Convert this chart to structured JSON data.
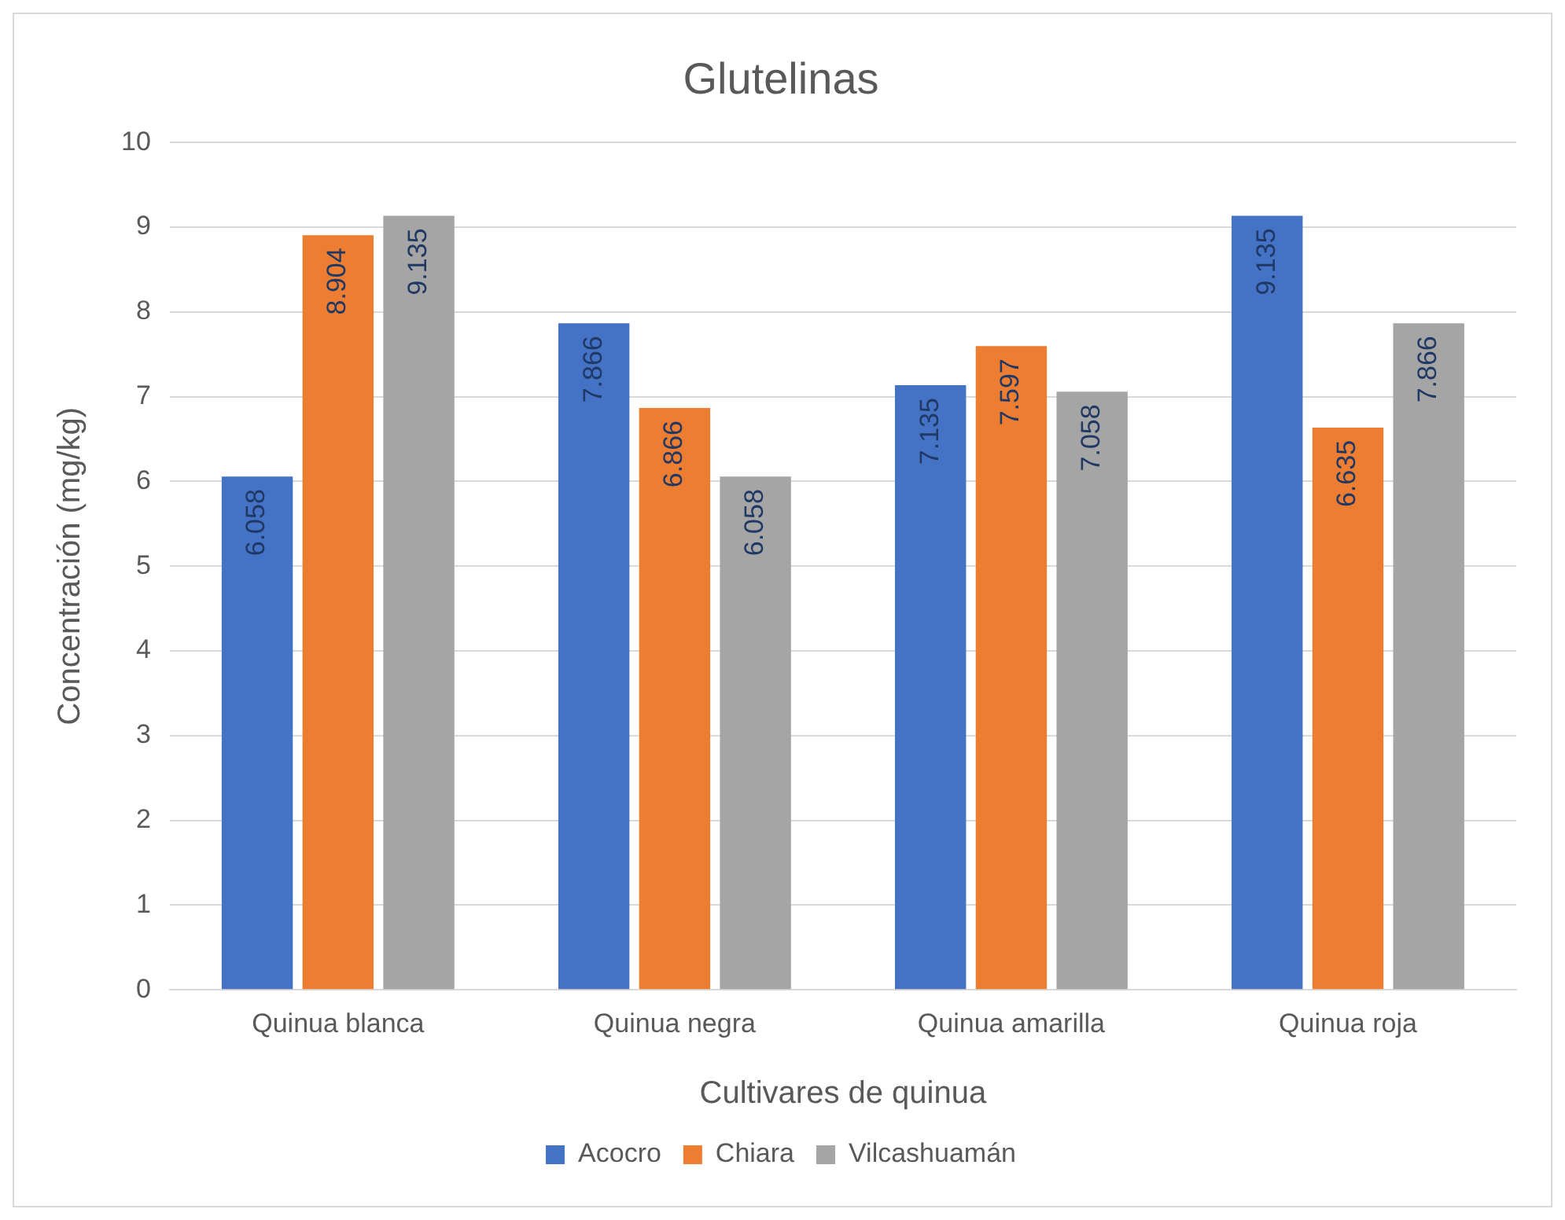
{
  "chart_data": {
    "type": "bar",
    "title": "Glutelinas",
    "xlabel": "Cultivares de quinua",
    "ylabel": "Concentración (mg/kg)",
    "categories": [
      "Quinua blanca",
      "Quinua negra",
      "Quinua amarilla",
      "Quinua roja"
    ],
    "series": [
      {
        "name": "Acocro",
        "color": "#4472c4",
        "values": [
          6.058,
          7.866,
          7.135,
          9.135
        ]
      },
      {
        "name": "Chiara",
        "color": "#ed7d31",
        "values": [
          8.904,
          6.866,
          7.597,
          6.635
        ]
      },
      {
        "name": "Vilcashuamán",
        "color": "#a5a5a5",
        "values": [
          9.135,
          6.058,
          7.058,
          7.866
        ]
      }
    ],
    "ylim": [
      0,
      10
    ],
    "yticks": [
      0,
      1,
      2,
      3,
      4,
      5,
      6,
      7,
      8,
      9,
      10
    ],
    "grid": "y",
    "legend": "bottom",
    "data_labels": true
  }
}
